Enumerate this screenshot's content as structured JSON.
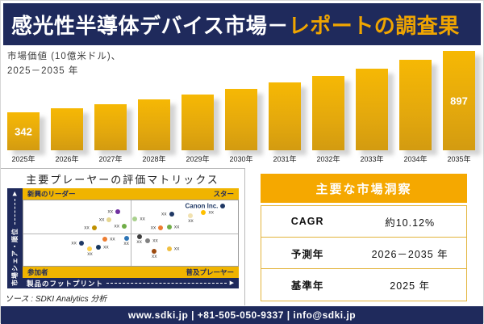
{
  "title": {
    "main": "感光性半導体デバイス市場－",
    "highlight": "レポートの調査果"
  },
  "chart_data": {
    "type": "bar",
    "title": "市場価値 (10億米ドル)、2025－2035 年",
    "label_line1": "市場価値 (10億米ドル)、",
    "label_line2": "2025－2035 年",
    "categories": [
      "2025年",
      "2026年",
      "2027年",
      "2028年",
      "2029年",
      "2030年",
      "2031年",
      "2032年",
      "2033年",
      "2034年",
      "2035年"
    ],
    "values": [
      342,
      377,
      415,
      457,
      503,
      554,
      610,
      672,
      740,
      814,
      897
    ],
    "visible_value_labels": {
      "first": "342",
      "last": "897"
    },
    "ylim": [
      0,
      900
    ],
    "bar_color": "#E8A90C",
    "grid": false,
    "legend": false
  },
  "matrix": {
    "title": "主要プレーヤーの評価マトリックス",
    "quadrants": {
      "tl": "新興のリーダー",
      "tr": "スター",
      "bl": "参加者",
      "br": "普及プレーヤー"
    },
    "y_axis_label": "市場シェア・順位",
    "x_axis_label": "製品のフットプリント",
    "point_label": "xx",
    "highlight_company": "Canon Inc.",
    "points": [
      {
        "x": 44,
        "y": 17,
        "c": "#7030A0",
        "lp": "l"
      },
      {
        "x": 40,
        "y": 30,
        "c": "#E6D690",
        "lp": "l"
      },
      {
        "x": 33,
        "y": 42,
        "c": "#BF9000",
        "lp": "l"
      },
      {
        "x": 47,
        "y": 39,
        "c": "#70AD47",
        "lp": "l"
      },
      {
        "x": 52,
        "y": 28,
        "c": "#A9D18E",
        "lp": "r"
      },
      {
        "x": 69,
        "y": 21,
        "c": "#1F3864",
        "lp": "l"
      },
      {
        "x": 93,
        "y": 9,
        "c": "#1F3864",
        "lp": "l",
        "company": true
      },
      {
        "x": 78,
        "y": 24,
        "c": "#F2E2B0",
        "lp": "b"
      },
      {
        "x": 84,
        "y": 18,
        "c": "#FFC000",
        "lp": "r"
      },
      {
        "x": 64,
        "y": 42,
        "c": "#ED7D31",
        "lp": "l"
      },
      {
        "x": 68,
        "y": 41,
        "c": "#70AD47",
        "lp": "r"
      },
      {
        "x": 27,
        "y": 66,
        "c": "#1F3864",
        "lp": "l"
      },
      {
        "x": 31,
        "y": 74,
        "c": "#FFD34D",
        "lp": "b"
      },
      {
        "x": 35,
        "y": 71,
        "c": "#17375E",
        "lp": "r"
      },
      {
        "x": 38,
        "y": 59,
        "c": "#ED7D31",
        "lp": "r"
      },
      {
        "x": 48,
        "y": 58,
        "c": "#2E75B6",
        "lp": "b"
      },
      {
        "x": 54,
        "y": 55,
        "c": "#404040",
        "lp": "b"
      },
      {
        "x": 58,
        "y": 62,
        "c": "#808080",
        "lp": "r"
      },
      {
        "x": 61,
        "y": 78,
        "c": "#9C4A10",
        "lp": "b"
      },
      {
        "x": 68,
        "y": 74,
        "c": "#F0C040",
        "lp": "r"
      }
    ]
  },
  "insights": {
    "header": "主要な市場洞察",
    "rows": [
      {
        "label": "CAGR",
        "value": "約10.12%"
      },
      {
        "label": "予測年",
        "value": "2026－2035 年"
      },
      {
        "label": "基準年",
        "value": "2025 年"
      }
    ]
  },
  "source": "ソース : SDKI Analytics 分析",
  "footer": "www.sdki.jp | +81-505-050-9337 | info@sdki.jp",
  "colors": {
    "navy": "#1F2A5C",
    "bar_gold": "#E8A90C",
    "band_gold": "#F0B400",
    "header_gold": "#F5A800",
    "table_border_gold": "#E3B43C",
    "title_highlight": "#F0A500"
  }
}
